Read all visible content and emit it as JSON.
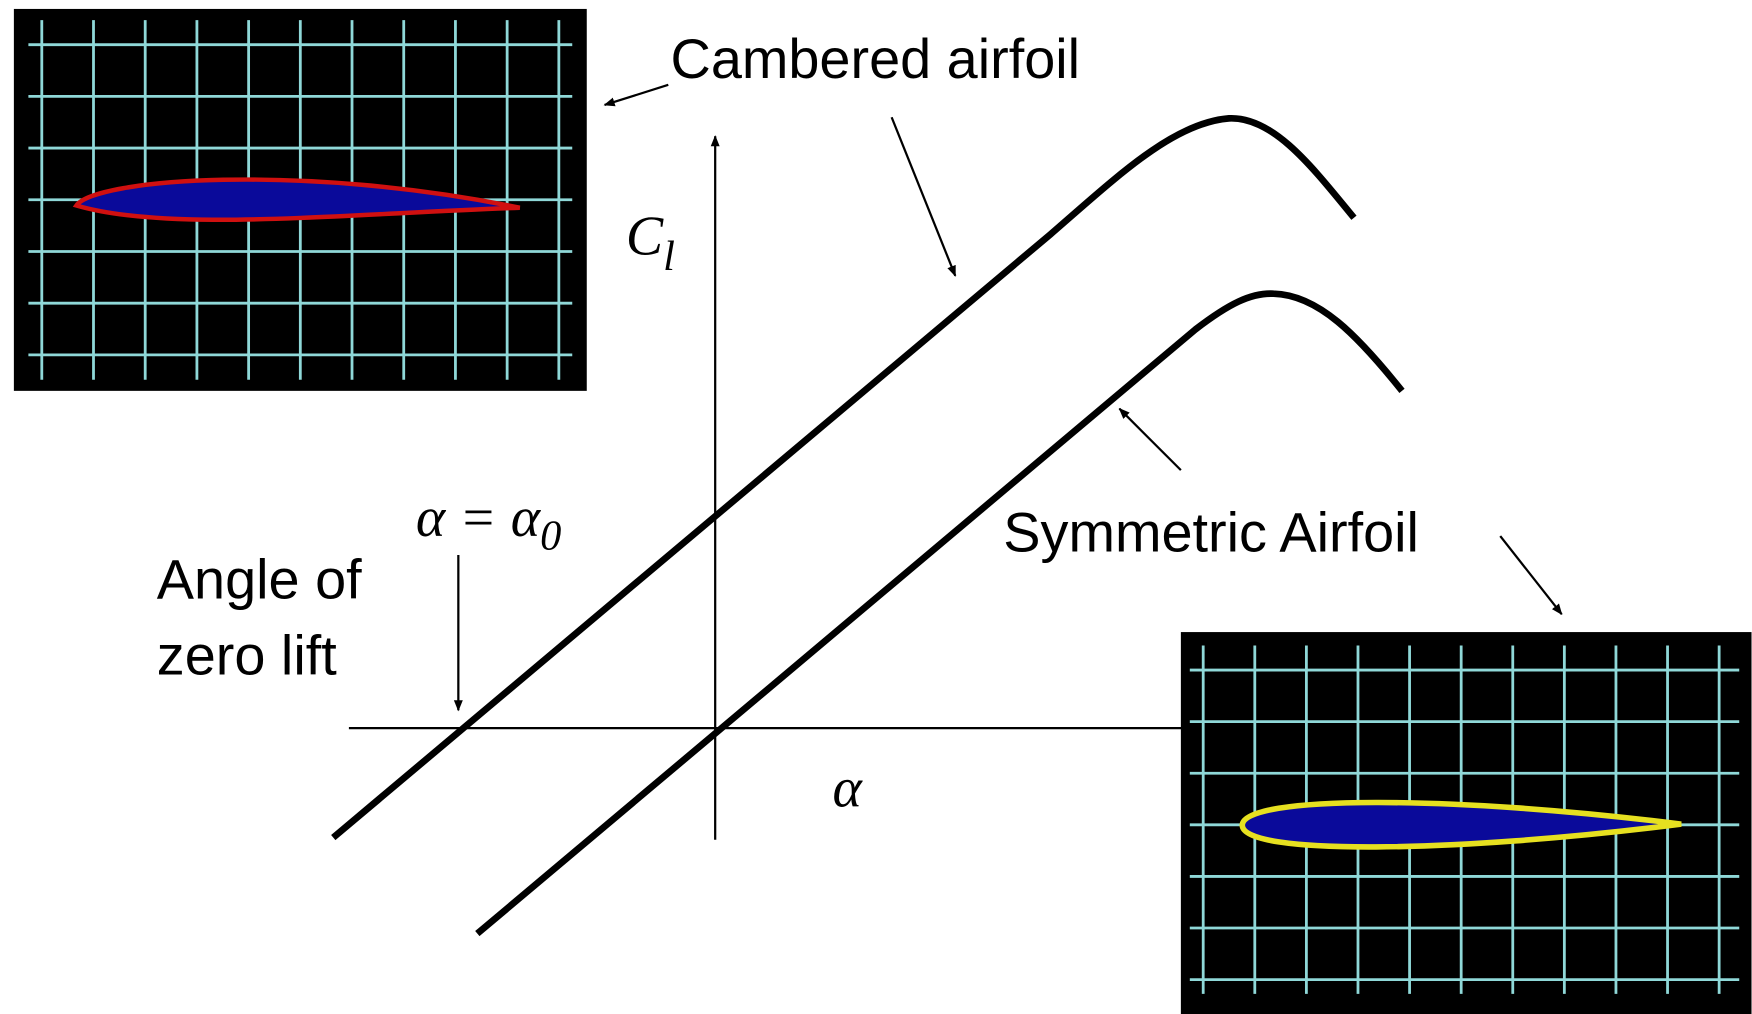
{
  "labels": {
    "cambered": "Cambered airfoil",
    "symmetric": "Symmetric Airfoil",
    "zero_lift_line1": "Angle of",
    "zero_lift_line2": "zero lift",
    "cl": {
      "main": "C",
      "sub": "l"
    },
    "alpha_zero": {
      "main": "α = α",
      "sub": "0"
    },
    "alpha_axis": "α"
  }
}
